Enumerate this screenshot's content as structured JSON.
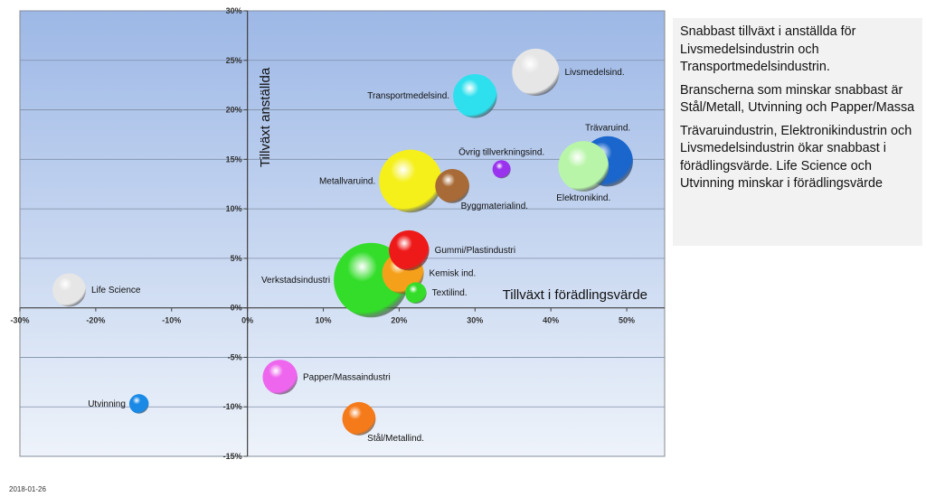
{
  "chart_data": {
    "type": "bubble",
    "xlabel": "Tillväxt i förädlingsvärde",
    "ylabel": "Tillväxt anställda",
    "xlim": [
      -0.3,
      0.55
    ],
    "ylim": [
      -0.15,
      0.3
    ],
    "x_ticks": [
      {
        "v": -0.3,
        "label": "-30%"
      },
      {
        "v": -0.2,
        "label": "-20%"
      },
      {
        "v": -0.1,
        "label": "-10%"
      },
      {
        "v": 0.0,
        "label": "0%"
      },
      {
        "v": 0.1,
        "label": "10%"
      },
      {
        "v": 0.2,
        "label": "20%"
      },
      {
        "v": 0.3,
        "label": "30%"
      },
      {
        "v": 0.4,
        "label": "40%"
      },
      {
        "v": 0.5,
        "label": "50%"
      }
    ],
    "y_ticks": [
      {
        "v": 0.3,
        "label": "30%"
      },
      {
        "v": 0.25,
        "label": "25%"
      },
      {
        "v": 0.2,
        "label": "20%"
      },
      {
        "v": 0.15,
        "label": "15%"
      },
      {
        "v": 0.1,
        "label": "10%"
      },
      {
        "v": 0.05,
        "label": "5%"
      },
      {
        "v": 0.0,
        "label": "0%"
      },
      {
        "v": -0.05,
        "label": "-5%"
      },
      {
        "v": -0.1,
        "label": "-10%"
      },
      {
        "v": -0.15,
        "label": "-15%"
      }
    ],
    "grid": true,
    "background_colors": [
      "#9db8e6",
      "#eef3fa"
    ],
    "points": [
      {
        "name": "Livsmedelsind.",
        "x": 0.38,
        "y": 0.238,
        "size": 880,
        "color": "#e6e6e6",
        "label_pos": "right"
      },
      {
        "name": "Transportmedelsind.",
        "x": 0.3,
        "y": 0.214,
        "size": 760,
        "color": "#2ee0ee",
        "label_pos": "left"
      },
      {
        "name": "Trävaruind.",
        "x": 0.475,
        "y": 0.148,
        "size": 1000,
        "color": "#1a66cc",
        "label_pos": "above"
      },
      {
        "name": "Elektronikind.",
        "x": 0.443,
        "y": 0.143,
        "size": 1000,
        "color": "#b8f5a8",
        "label_pos": "below"
      },
      {
        "name": "Övrig tillverkningsind.",
        "x": 0.335,
        "y": 0.14,
        "size": 130,
        "color": "#9933ee",
        "label_pos": "above"
      },
      {
        "name": "Metallvaruind.",
        "x": 0.215,
        "y": 0.128,
        "size": 1560,
        "color": "#f5f01a",
        "label_pos": "left"
      },
      {
        "name": "Byggmaterialind.",
        "x": 0.27,
        "y": 0.123,
        "size": 460,
        "color": "#a86a36",
        "label_pos": "below-right"
      },
      {
        "name": "Gummi/Plastindustri",
        "x": 0.213,
        "y": 0.058,
        "size": 640,
        "color": "#ee1a1a",
        "label_pos": "right"
      },
      {
        "name": "Kemisk ind.",
        "x": 0.205,
        "y": 0.035,
        "size": 680,
        "color": "#f5a01a",
        "label_pos": "right"
      },
      {
        "name": "Verkstadsindustri",
        "x": 0.163,
        "y": 0.028,
        "size": 2200,
        "color": "#33dd2a",
        "label_pos": "left"
      },
      {
        "name": "Textilind.",
        "x": 0.222,
        "y": 0.015,
        "size": 180,
        "color": "#33dd2a",
        "label_pos": "right"
      },
      {
        "name": "Life Science",
        "x": -0.235,
        "y": 0.018,
        "size": 440,
        "color": "#e6e6e6",
        "label_pos": "right"
      },
      {
        "name": "Papper/Massaindustri",
        "x": 0.043,
        "y": -0.07,
        "size": 480,
        "color": "#ee66ee",
        "label_pos": "right"
      },
      {
        "name": "Utvinning",
        "x": -0.143,
        "y": -0.097,
        "size": 150,
        "color": "#1a8ae6",
        "label_pos": "left"
      },
      {
        "name": "Stål/Metallind.",
        "x": 0.147,
        "y": -0.112,
        "size": 440,
        "color": "#f57a1a",
        "label_pos": "below-right"
      }
    ]
  },
  "notes": [
    "Snabbast tillväxt i anställda för Livsmedelsindustrin  och Transportmedelsindustrin.",
    "Branscherna  som minskar snabbast är Stål/Metall, Utvinning och Papper/Massa",
    "Trävaruindustrin,  Elektronikindustrin och Livsmedelsindustrin  ökar snabbast i förädlingsvärde.  Life Science och Utvinning  minskar i förädlingsvärde"
  ],
  "date_stamp": "2018-01-26"
}
